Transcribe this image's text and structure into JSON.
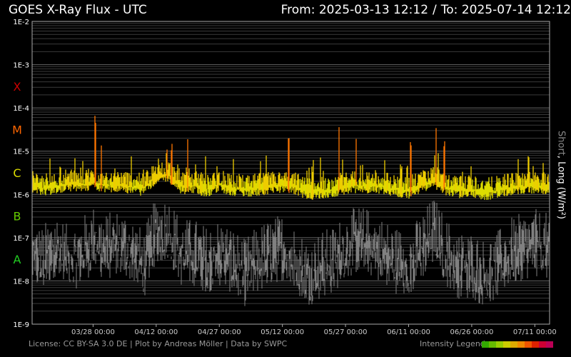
{
  "header": {
    "title": "GOES X-Ray Flux - UTC",
    "from_label": "From: 2025-03-13 12:12",
    "separator": "/",
    "to_label": "To: 2025-07-14 12:12"
  },
  "side_label": {
    "short": "Short",
    "sep": ", ",
    "long": "Long (W/m²)"
  },
  "footer": {
    "license": "License: CC BY-SA 3.0 DE | Plot by Andreas Möller | Data by SWPC",
    "legend_label": "Intensity Legend"
  },
  "colors": {
    "background": "#000000",
    "grid": "#4a4a4a",
    "short_series": "#808080",
    "class_A": "#22cc22",
    "class_B": "#66cc00",
    "class_C": "#dddd00",
    "class_M": "#ff6600",
    "class_X": "#cc0000",
    "legend": [
      "#33aa00",
      "#66bb00",
      "#99cc00",
      "#cccc00",
      "#ddaa00",
      "#ee8800",
      "#ee5500",
      "#dd2200",
      "#cc0033",
      "#bb0055"
    ]
  },
  "chart_data": {
    "type": "line",
    "title": "GOES X-Ray Flux - UTC",
    "ylabel": "Short, Long (W/m²)",
    "yscale": "log",
    "ylim": [
      1e-09,
      0.01
    ],
    "xlim": [
      "2025-03-13 12:12",
      "2025-07-14 12:12"
    ],
    "y_tick_labels": [
      "1E-2",
      "1E-3",
      "1E-4",
      "1E-5",
      "1E-6",
      "1E-7",
      "1E-8",
      "1E-9"
    ],
    "class_labels": [
      "X",
      "M",
      "C",
      "B",
      "A"
    ],
    "x_tick_labels": [
      "03/28 00:00",
      "04/12 00:00",
      "04/27 00:00",
      "05/12 00:00",
      "05/27 00:00",
      "06/11 00:00",
      "06/26 00:00",
      "07/11 00:00"
    ],
    "series": [
      {
        "name": "Long",
        "x": [
          "2025-03-13",
          "2025-03-16",
          "2025-03-19",
          "2025-03-22",
          "2025-03-25",
          "2025-03-28",
          "2025-03-31",
          "2025-04-03",
          "2025-04-06",
          "2025-04-09",
          "2025-04-12",
          "2025-04-15",
          "2025-04-18",
          "2025-04-21",
          "2025-04-24",
          "2025-04-27",
          "2025-04-30",
          "2025-05-03",
          "2025-05-06",
          "2025-05-09",
          "2025-05-12",
          "2025-05-15",
          "2025-05-18",
          "2025-05-21",
          "2025-05-24",
          "2025-05-27",
          "2025-05-30",
          "2025-06-02",
          "2025-06-05",
          "2025-06-08",
          "2025-06-11",
          "2025-06-14",
          "2025-06-17",
          "2025-06-20",
          "2025-06-23",
          "2025-06-26",
          "2025-06-29",
          "2025-07-02",
          "2025-07-05",
          "2025-07-08",
          "2025-07-11",
          "2025-07-14"
        ],
        "values": [
          1.6e-06,
          1.4e-06,
          1.5e-06,
          1.8e-06,
          1.6e-06,
          1.9e-06,
          1.6e-06,
          1.7e-06,
          1.5e-06,
          1.4e-06,
          2.5e-06,
          2.8e-06,
          1.5e-06,
          1.6e-06,
          1.3e-06,
          1.7e-06,
          1.4e-06,
          1.3e-06,
          1.4e-06,
          1.5e-06,
          1.6e-06,
          1.5e-06,
          1.1e-06,
          1.2e-06,
          1.3e-06,
          1.5e-06,
          1.6e-06,
          1.6e-06,
          1.5e-06,
          1.3e-06,
          1.2e-06,
          1.6e-06,
          2e-06,
          1.4e-06,
          1.2e-06,
          1.3e-06,
          1.1e-06,
          1.2e-06,
          1.4e-06,
          1.5e-06,
          1.6e-06,
          1.5e-06
        ]
      },
      {
        "name": "Short",
        "x": [
          "2025-03-13",
          "2025-03-16",
          "2025-03-19",
          "2025-03-22",
          "2025-03-25",
          "2025-03-28",
          "2025-03-31",
          "2025-04-03",
          "2025-04-06",
          "2025-04-09",
          "2025-04-12",
          "2025-04-15",
          "2025-04-18",
          "2025-04-21",
          "2025-04-24",
          "2025-04-27",
          "2025-04-30",
          "2025-05-03",
          "2025-05-06",
          "2025-05-09",
          "2025-05-12",
          "2025-05-15",
          "2025-05-18",
          "2025-05-21",
          "2025-05-24",
          "2025-05-27",
          "2025-05-30",
          "2025-06-02",
          "2025-06-05",
          "2025-06-08",
          "2025-06-11",
          "2025-06-14",
          "2025-06-17",
          "2025-06-20",
          "2025-06-23",
          "2025-06-26",
          "2025-06-29",
          "2025-07-02",
          "2025-07-05",
          "2025-07-08",
          "2025-07-11",
          "2025-07-14"
        ],
        "values": [
          3e-08,
          2e-08,
          5e-08,
          2e-08,
          3e-08,
          6e-08,
          4e-08,
          5e-08,
          4e-08,
          1.5e-08,
          1e-07,
          1e-07,
          3e-08,
          3e-08,
          2e-08,
          3e-08,
          2e-08,
          1e-08,
          2e-08,
          3e-08,
          4e-08,
          2e-08,
          1e-08,
          1.5e-08,
          2e-08,
          4e-08,
          6e-08,
          5e-08,
          3e-08,
          2e-08,
          1.5e-08,
          4e-08,
          1e-07,
          3e-08,
          1.5e-08,
          1.5e-08,
          1e-08,
          1.5e-08,
          3e-08,
          4e-08,
          5e-08,
          4e-08
        ]
      }
    ],
    "flares": [
      {
        "x": "2025-03-28",
        "peak": 0.00011
      },
      {
        "x": "2025-04-14",
        "peak": 2e-05
      },
      {
        "x": "2025-04-19",
        "peak": 2e-05
      },
      {
        "x": "2025-05-13",
        "peak": 4e-05
      },
      {
        "x": "2025-05-25",
        "peak": 5e-05
      },
      {
        "x": "2025-05-29",
        "peak": 2.5e-05
      },
      {
        "x": "2025-06-11",
        "peak": 3e-05
      },
      {
        "x": "2025-06-17",
        "peak": 4.5e-05
      },
      {
        "x": "2025-06-19",
        "peak": 3e-05
      },
      {
        "x": "2025-07-09",
        "peak": 1.5e-05
      }
    ]
  }
}
